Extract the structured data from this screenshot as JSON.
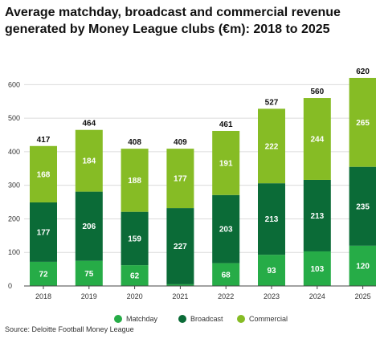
{
  "title_lines": [
    "Average matchday, broadcast and commercial revenue",
    "generated by Money League clubs (€m): 2018 to 2025"
  ],
  "source": "Source: Deloitte Football Money League",
  "colors": {
    "matchday": "#26ac47",
    "broadcast": "#0b6b37",
    "commercial": "#86bc25",
    "grid": "#dcdcdc",
    "axis": "#444444"
  },
  "chart_data": {
    "type": "bar",
    "stacked": true,
    "categories": [
      "2018",
      "2019",
      "2020",
      "2021",
      "2022",
      "2023",
      "2024",
      "2025"
    ],
    "series": [
      {
        "name": "Matchday",
        "values": [
          72,
          75,
          62,
          5,
          68,
          93,
          103,
          120
        ]
      },
      {
        "name": "Broadcast",
        "values": [
          177,
          206,
          159,
          227,
          203,
          213,
          213,
          235
        ]
      },
      {
        "name": "Commercial",
        "values": [
          168,
          184,
          188,
          177,
          191,
          222,
          244,
          265
        ]
      }
    ],
    "data_labels": {
      "Matchday": [
        "72",
        "75",
        "62",
        "",
        "68",
        "93",
        "103",
        "120"
      ],
      "Broadcast": [
        "177",
        "206",
        "159",
        "227",
        "203",
        "213",
        "213",
        "235"
      ],
      "Commercial": [
        "168",
        "184",
        "188",
        "177",
        "191",
        "222",
        "244",
        "265"
      ]
    },
    "totals": [
      417,
      464,
      408,
      409,
      461,
      527,
      560,
      620
    ],
    "ylim": [
      0,
      620
    ],
    "yticks": [
      0,
      100,
      200,
      300,
      400,
      500,
      600
    ],
    "legend": [
      "Matchday",
      "Broadcast",
      "Commercial"
    ],
    "legend_position": "bottom",
    "grid": true
  }
}
